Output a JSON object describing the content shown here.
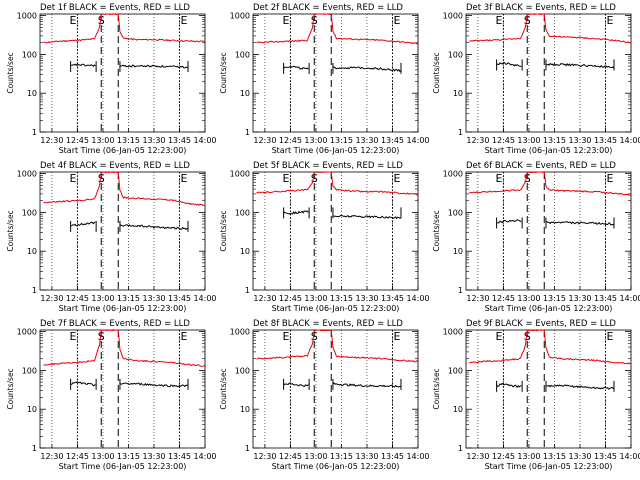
{
  "shared_axes": {
    "ylabel": "Counts/sec",
    "xlabel": "Start Time (06-Jan-05 12:23:00)",
    "xticks": [
      "12:30",
      "12:45",
      "13:00",
      "13:15",
      "13:30",
      "13:45",
      "14:00"
    ],
    "yticks": [
      "1",
      "10",
      "100",
      "1000"
    ],
    "event_markers": [
      "E",
      "S",
      "E"
    ]
  },
  "colors": {
    "events": "#000000",
    "lld": "#e8000b",
    "axis": "#000000"
  },
  "chart_data": [
    {
      "type": "line",
      "title": "Det 1f BLACK = Events, RED = LLD",
      "x_unit": "time",
      "y_scale": "log",
      "xlim": [
        "12:23",
        "14:00"
      ],
      "ylim": [
        1,
        1100
      ],
      "vlines_dotted": [
        "12:45",
        "13:45"
      ],
      "vlines_dashed": [
        "12:59",
        "13:09"
      ],
      "series": [
        {
          "name": "LLD",
          "color": "#e8000b",
          "x": [
            "12:25",
            "12:35",
            "12:45",
            "12:55",
            "12:58",
            "12:59",
            "13:09",
            "13:10",
            "13:12",
            "13:20",
            "13:30",
            "13:40",
            "13:50",
            "14:00"
          ],
          "values": [
            200,
            220,
            230,
            250,
            500,
            1100,
            1100,
            400,
            260,
            240,
            240,
            230,
            220,
            215
          ]
        },
        {
          "name": "Events",
          "color": "#000000",
          "x": [
            "12:41",
            "12:45",
            "12:50",
            "12:55",
            "12:56",
            "13:10",
            "13:20",
            "13:30",
            "13:40",
            "13:50"
          ],
          "values": [
            50,
            55,
            52,
            52,
            50,
            50,
            50,
            50,
            48,
            47
          ]
        }
      ]
    },
    {
      "type": "line",
      "title": "Det 2f BLACK = Events, RED = LLD",
      "x_unit": "time",
      "y_scale": "log",
      "xlim": [
        "12:23",
        "14:00"
      ],
      "ylim": [
        1,
        1100
      ],
      "vlines_dotted": [
        "12:45",
        "13:45"
      ],
      "vlines_dashed": [
        "12:59",
        "13:09"
      ],
      "series": [
        {
          "name": "LLD",
          "color": "#e8000b",
          "x": [
            "12:25",
            "12:35",
            "12:45",
            "12:55",
            "12:58",
            "12:59",
            "13:09",
            "13:10",
            "13:12",
            "13:20",
            "13:30",
            "13:40",
            "13:50",
            "14:00"
          ],
          "values": [
            200,
            210,
            220,
            230,
            500,
            1100,
            1100,
            400,
            260,
            250,
            240,
            230,
            210,
            190
          ]
        },
        {
          "name": "Events",
          "color": "#000000",
          "x": [
            "12:41",
            "12:45",
            "12:50",
            "12:55",
            "12:56",
            "13:10",
            "13:20",
            "13:30",
            "13:40",
            "13:50"
          ],
          "values": [
            45,
            50,
            45,
            42,
            40,
            45,
            45,
            45,
            42,
            38
          ]
        }
      ]
    },
    {
      "type": "line",
      "title": "Det 3f BLACK = Events, RED = LLD",
      "x_unit": "time",
      "y_scale": "log",
      "xlim": [
        "12:23",
        "14:00"
      ],
      "ylim": [
        1,
        1100
      ],
      "vlines_dotted": [
        "12:45",
        "13:45"
      ],
      "vlines_dashed": [
        "12:59",
        "13:09"
      ],
      "series": [
        {
          "name": "LLD",
          "color": "#e8000b",
          "x": [
            "12:25",
            "12:35",
            "12:45",
            "12:55",
            "12:58",
            "12:59",
            "13:09",
            "13:10",
            "13:12",
            "13:20",
            "13:30",
            "13:40",
            "13:50",
            "14:00"
          ],
          "values": [
            220,
            230,
            240,
            260,
            500,
            1100,
            1100,
            420,
            300,
            280,
            270,
            250,
            230,
            200
          ]
        },
        {
          "name": "Events",
          "color": "#000000",
          "x": [
            "12:41",
            "12:45",
            "12:50",
            "12:55",
            "12:56",
            "13:10",
            "13:20",
            "13:30",
            "13:40",
            "13:50"
          ],
          "values": [
            55,
            60,
            55,
            50,
            48,
            55,
            55,
            52,
            50,
            45
          ]
        }
      ]
    },
    {
      "type": "line",
      "title": "Det 4f BLACK = Events, RED = LLD",
      "x_unit": "time",
      "y_scale": "log",
      "xlim": [
        "12:23",
        "14:00"
      ],
      "ylim": [
        1,
        1100
      ],
      "vlines_dotted": [
        "12:45",
        "13:45"
      ],
      "vlines_dashed": [
        "12:59",
        "13:09"
      ],
      "series": [
        {
          "name": "LLD",
          "color": "#e8000b",
          "x": [
            "12:25",
            "12:35",
            "12:45",
            "12:55",
            "12:58",
            "12:59",
            "13:09",
            "13:10",
            "13:12",
            "13:20",
            "13:30",
            "13:40",
            "13:50",
            "14:00"
          ],
          "values": [
            180,
            190,
            200,
            220,
            500,
            1100,
            1100,
            380,
            240,
            230,
            220,
            210,
            170,
            150
          ]
        },
        {
          "name": "Events",
          "color": "#000000",
          "x": [
            "12:41",
            "12:45",
            "12:50",
            "12:55",
            "12:56",
            "13:10",
            "13:20",
            "13:30",
            "13:40",
            "13:50"
          ],
          "values": [
            45,
            48,
            50,
            55,
            52,
            45,
            45,
            42,
            40,
            38
          ]
        }
      ]
    },
    {
      "type": "line",
      "title": "Det 5f BLACK = Events, RED = LLD",
      "x_unit": "time",
      "y_scale": "log",
      "xlim": [
        "12:23",
        "14:00"
      ],
      "ylim": [
        1,
        1100
      ],
      "vlines_dotted": [
        "12:45",
        "13:45"
      ],
      "vlines_dashed": [
        "12:59",
        "13:09"
      ],
      "series": [
        {
          "name": "LLD",
          "color": "#e8000b",
          "x": [
            "12:25",
            "12:35",
            "12:45",
            "12:55",
            "12:58",
            "12:59",
            "13:09",
            "13:10",
            "13:12",
            "13:20",
            "13:30",
            "13:40",
            "13:50",
            "14:00"
          ],
          "values": [
            320,
            340,
            360,
            380,
            600,
            1100,
            1100,
            480,
            380,
            360,
            340,
            340,
            310,
            290
          ]
        },
        {
          "name": "Events",
          "color": "#000000",
          "x": [
            "12:41",
            "12:45",
            "12:50",
            "12:55",
            "12:56",
            "13:10",
            "13:20",
            "13:30",
            "13:40",
            "13:50"
          ],
          "values": [
            100,
            95,
            100,
            105,
            100,
            80,
            80,
            78,
            75,
            72
          ]
        }
      ]
    },
    {
      "type": "line",
      "title": "Det 6f BLACK = Events, RED = LLD",
      "x_unit": "time",
      "y_scale": "log",
      "xlim": [
        "12:23",
        "14:00"
      ],
      "ylim": [
        1,
        1100
      ],
      "vlines_dotted": [
        "12:45",
        "13:45"
      ],
      "vlines_dashed": [
        "12:59",
        "13:09"
      ],
      "series": [
        {
          "name": "LLD",
          "color": "#e8000b",
          "x": [
            "12:25",
            "12:35",
            "12:45",
            "12:55",
            "12:58",
            "12:59",
            "13:09",
            "13:10",
            "13:12",
            "13:20",
            "13:30",
            "13:40",
            "13:50",
            "14:00"
          ],
          "values": [
            320,
            340,
            360,
            380,
            600,
            1100,
            1100,
            480,
            380,
            360,
            350,
            340,
            310,
            280
          ]
        },
        {
          "name": "Events",
          "color": "#000000",
          "x": [
            "12:41",
            "12:45",
            "12:50",
            "12:55",
            "12:56",
            "13:10",
            "13:20",
            "13:30",
            "13:40",
            "13:50"
          ],
          "values": [
            55,
            58,
            60,
            62,
            60,
            55,
            55,
            53,
            52,
            50
          ]
        }
      ]
    },
    {
      "type": "line",
      "title": "Det 7f BLACK = Events, RED = LLD",
      "x_unit": "time",
      "y_scale": "log",
      "xlim": [
        "12:23",
        "14:00"
      ],
      "ylim": [
        1,
        1100
      ],
      "vlines_dotted": [
        "12:45",
        "13:45"
      ],
      "vlines_dashed": [
        "12:59",
        "13:09"
      ],
      "series": [
        {
          "name": "LLD",
          "color": "#e8000b",
          "x": [
            "12:25",
            "12:35",
            "12:45",
            "12:55",
            "12:58",
            "12:59",
            "13:09",
            "13:10",
            "13:12",
            "13:20",
            "13:30",
            "13:40",
            "13:50",
            "14:00"
          ],
          "values": [
            140,
            150,
            160,
            180,
            450,
            1100,
            1100,
            360,
            200,
            180,
            170,
            160,
            140,
            130
          ]
        },
        {
          "name": "Events",
          "color": "#000000",
          "x": [
            "12:41",
            "12:45",
            "12:50",
            "12:55",
            "12:56",
            "13:10",
            "13:20",
            "13:30",
            "13:40",
            "13:50"
          ],
          "values": [
            45,
            48,
            45,
            42,
            45,
            45,
            45,
            42,
            40,
            40
          ]
        }
      ]
    },
    {
      "type": "line",
      "title": "Det 8f BLACK = Events, RED = LLD",
      "x_unit": "time",
      "y_scale": "log",
      "xlim": [
        "12:23",
        "14:00"
      ],
      "ylim": [
        1,
        1100
      ],
      "vlines_dotted": [
        "12:45",
        "13:45"
      ],
      "vlines_dashed": [
        "12:59",
        "13:09"
      ],
      "series": [
        {
          "name": "LLD",
          "color": "#e8000b",
          "x": [
            "12:25",
            "12:35",
            "12:45",
            "12:55",
            "12:58",
            "12:59",
            "13:09",
            "13:10",
            "13:12",
            "13:20",
            "13:30",
            "13:40",
            "13:50",
            "14:00"
          ],
          "values": [
            200,
            210,
            220,
            240,
            500,
            1100,
            1100,
            400,
            230,
            220,
            210,
            200,
            180,
            170
          ]
        },
        {
          "name": "Events",
          "color": "#000000",
          "x": [
            "12:41",
            "12:45",
            "12:50",
            "12:55",
            "12:56",
            "13:10",
            "13:20",
            "13:30",
            "13:40",
            "13:50"
          ],
          "values": [
            45,
            45,
            42,
            40,
            45,
            45,
            42,
            40,
            40,
            38
          ]
        }
      ]
    },
    {
      "type": "line",
      "title": "Det 9f BLACK = Events, RED = LLD",
      "x_unit": "time",
      "y_scale": "log",
      "xlim": [
        "12:23",
        "14:00"
      ],
      "ylim": [
        1,
        1100
      ],
      "vlines_dotted": [
        "12:45",
        "13:45"
      ],
      "vlines_dashed": [
        "12:59",
        "13:09"
      ],
      "series": [
        {
          "name": "LLD",
          "color": "#e8000b",
          "x": [
            "12:25",
            "12:35",
            "12:45",
            "12:55",
            "12:58",
            "12:59",
            "13:09",
            "13:10",
            "13:12",
            "13:20",
            "13:30",
            "13:40",
            "13:50",
            "14:00"
          ],
          "values": [
            160,
            170,
            180,
            200,
            450,
            1100,
            1100,
            380,
            220,
            200,
            190,
            180,
            160,
            150
          ]
        },
        {
          "name": "Events",
          "color": "#000000",
          "x": [
            "12:41",
            "12:45",
            "12:50",
            "12:55",
            "12:56",
            "13:10",
            "13:20",
            "13:30",
            "13:40",
            "13:50"
          ],
          "values": [
            40,
            45,
            40,
            38,
            40,
            40,
            40,
            38,
            35,
            35
          ]
        }
      ]
    }
  ]
}
